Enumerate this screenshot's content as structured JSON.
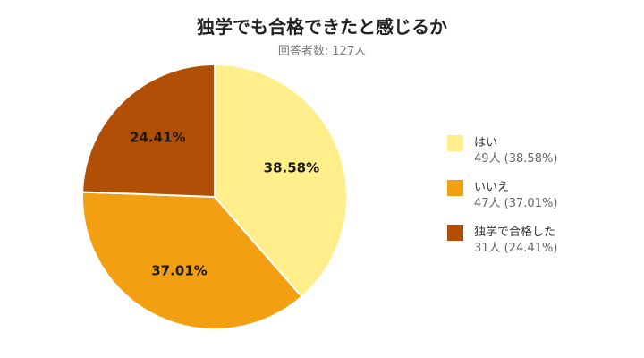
{
  "chart_data": {
    "type": "pie",
    "title": "独学でも合格できたと感じるか",
    "subtitle": "回答者数: 127人",
    "slices": [
      {
        "label": "はい",
        "count_text": "49人 (38.58%)",
        "value": 38.58,
        "pct_label": "38.58%",
        "color": "#FFEE8A"
      },
      {
        "label": "いいえ",
        "count_text": "47人 (37.01%)",
        "value": 37.01,
        "pct_label": "37.01%",
        "color": "#F2A012"
      },
      {
        "label": "独学で合格した",
        "count_text": "31人 (24.41%)",
        "value": 24.41,
        "pct_label": "24.41%",
        "color": "#B24F06"
      }
    ],
    "legend_position": "right",
    "start_angle": "12 o'clock",
    "direction": "clockwise"
  }
}
